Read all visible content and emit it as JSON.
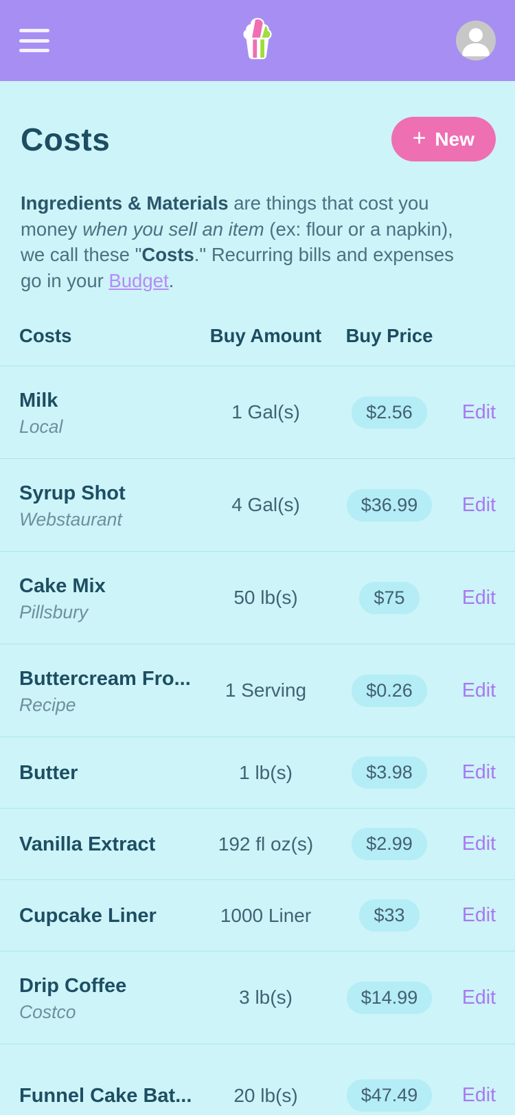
{
  "colors": {
    "topbar_purple": "#a78ef3",
    "page_background": "#cdf4f8",
    "accent_pink": "#ef6fb3",
    "title_teal": "#1c4d62",
    "body_text": "#4a7181",
    "link_purple": "#b68af8",
    "edit_purple": "#a878f2",
    "pill_cyan": "#b4edf6",
    "divider_cyan": "#a8e7ef",
    "logo_pink": "#f06eb4",
    "logo_green": "#a0dd3f",
    "avatar_gray": "#c7c7c7"
  },
  "topbar": {
    "icons": [
      "hamburger-menu-icon",
      "cupcake-logo",
      "user-avatar"
    ]
  },
  "page": {
    "title": "Costs",
    "new_button": {
      "plus_icon": "+",
      "label": "New"
    },
    "intro": {
      "bold1": "Ingredients & Materials",
      "text1": " are things that cost you money ",
      "italic1": "when you sell an item",
      "text2": " (ex: flour or a napkin), we call these \"",
      "bold2": "Costs",
      "text3": ".\" Recurring bills and expenses go in your ",
      "link": "Budget",
      "text4": "."
    },
    "table": {
      "headers": {
        "name": "Costs",
        "amount": "Buy Amount",
        "price": "Buy Price"
      },
      "edit_label": "Edit",
      "rows": [
        {
          "name": "Milk",
          "vendor": "Local",
          "amount": "1 Gal(s)",
          "price": "$2.56"
        },
        {
          "name": "Syrup Shot",
          "vendor": "Webstaurant",
          "amount": "4 Gal(s)",
          "price": "$36.99"
        },
        {
          "name": "Cake Mix",
          "vendor": "Pillsbury",
          "amount": "50 lb(s)",
          "price": "$75"
        },
        {
          "name": "Buttercream Fro...",
          "vendor": "Recipe",
          "amount": "1 Serving",
          "price": "$0.26"
        },
        {
          "name": "Butter",
          "vendor": "",
          "amount": "1 lb(s)",
          "price": "$3.98"
        },
        {
          "name": "Vanilla Extract",
          "vendor": "",
          "amount": "192 fl oz(s)",
          "price": "$2.99"
        },
        {
          "name": "Cupcake Liner",
          "vendor": "",
          "amount": "1000 Liner",
          "price": "$33"
        },
        {
          "name": "Drip Coffee",
          "vendor": "Costco",
          "amount": "3 lb(s)",
          "price": "$14.99"
        },
        {
          "name": "Funnel Cake Bat...",
          "vendor": "",
          "amount": "20 lb(s)",
          "price": "$47.49"
        }
      ]
    }
  }
}
